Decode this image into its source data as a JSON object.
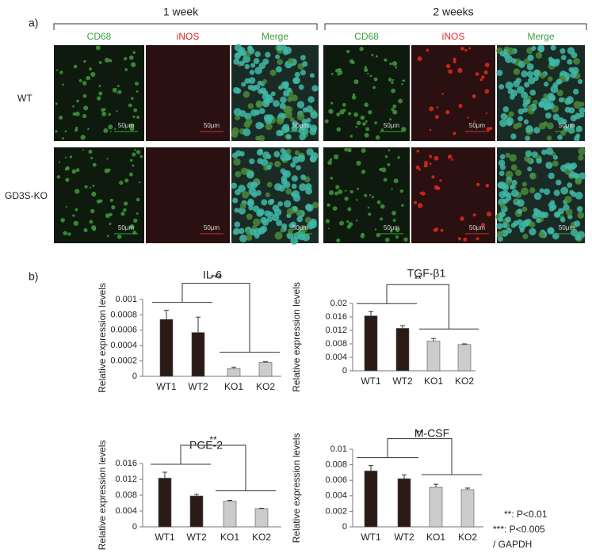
{
  "panel_a": {
    "label": "a)",
    "groups": [
      "1 week",
      "2 weeks"
    ],
    "channels": [
      "CD68",
      "iNOS",
      "Merge",
      "CD68",
      "iNOS",
      "Merge"
    ],
    "rows": [
      "WT",
      "GD3S-KO"
    ],
    "scale_bar": "50μm"
  },
  "panel_b_label": "b)",
  "notes": [
    "**: P<0.01",
    "***: P<0.005",
    "/ GAPDH"
  ],
  "chart_data": [
    {
      "type": "bar",
      "title": "IL-6",
      "ylabel": "Relative expression levels",
      "categories": [
        "WT1",
        "WT2",
        "KO1",
        "KO2"
      ],
      "values": [
        0.00074,
        0.00057,
        0.0001,
        0.00018
      ],
      "errors": [
        0.00012,
        0.0002,
        2e-05,
        1e-05
      ],
      "colors": [
        "#2b1b17",
        "#2b1b17",
        "#cccccc",
        "#cccccc"
      ],
      "ylim": [
        0,
        0.001
      ],
      "yticks": [
        0,
        0.0002,
        0.0004,
        0.0006,
        0.0008,
        0.001
      ],
      "significance": "***"
    },
    {
      "type": "bar",
      "title": "TGF-β1",
      "ylabel": "Relative expression levels",
      "categories": [
        "WT1",
        "WT2",
        "KO1",
        "KO2"
      ],
      "values": [
        0.0163,
        0.0126,
        0.0088,
        0.0078
      ],
      "errors": [
        0.0013,
        0.0008,
        0.0008,
        0.0002
      ],
      "colors": [
        "#2b1b17",
        "#2b1b17",
        "#cccccc",
        "#cccccc"
      ],
      "ylim": [
        0,
        0.02
      ],
      "yticks": [
        0,
        0.004,
        0.008,
        0.012,
        0.016,
        0.02
      ],
      "significance": "**"
    },
    {
      "type": "bar",
      "title": "PGE-2",
      "ylabel": "Relative expression levels",
      "categories": [
        "WT1",
        "WT2",
        "KO1",
        "KO2"
      ],
      "values": [
        0.0123,
        0.0078,
        0.0065,
        0.0046
      ],
      "errors": [
        0.0015,
        0.0004,
        0.0002,
        0.0001
      ],
      "colors": [
        "#2b1b17",
        "#2b1b17",
        "#cccccc",
        "#cccccc"
      ],
      "ylim": [
        0,
        0.016
      ],
      "yticks": [
        0,
        0.004,
        0.008,
        0.012,
        0.016
      ],
      "significance": "**"
    },
    {
      "type": "bar",
      "title": "M-CSF",
      "ylabel": "Relative expression levels",
      "categories": [
        "WT1",
        "WT2",
        "KO1",
        "KO2"
      ],
      "values": [
        0.0072,
        0.0062,
        0.0051,
        0.0048
      ],
      "errors": [
        0.0007,
        0.0005,
        0.0004,
        0.0002
      ],
      "colors": [
        "#2b1b17",
        "#2b1b17",
        "#cccccc",
        "#cccccc"
      ],
      "ylim": [
        0,
        0.01
      ],
      "yticks": [
        0,
        0.002,
        0.004,
        0.006,
        0.008,
        0.01
      ],
      "significance": "**"
    }
  ]
}
